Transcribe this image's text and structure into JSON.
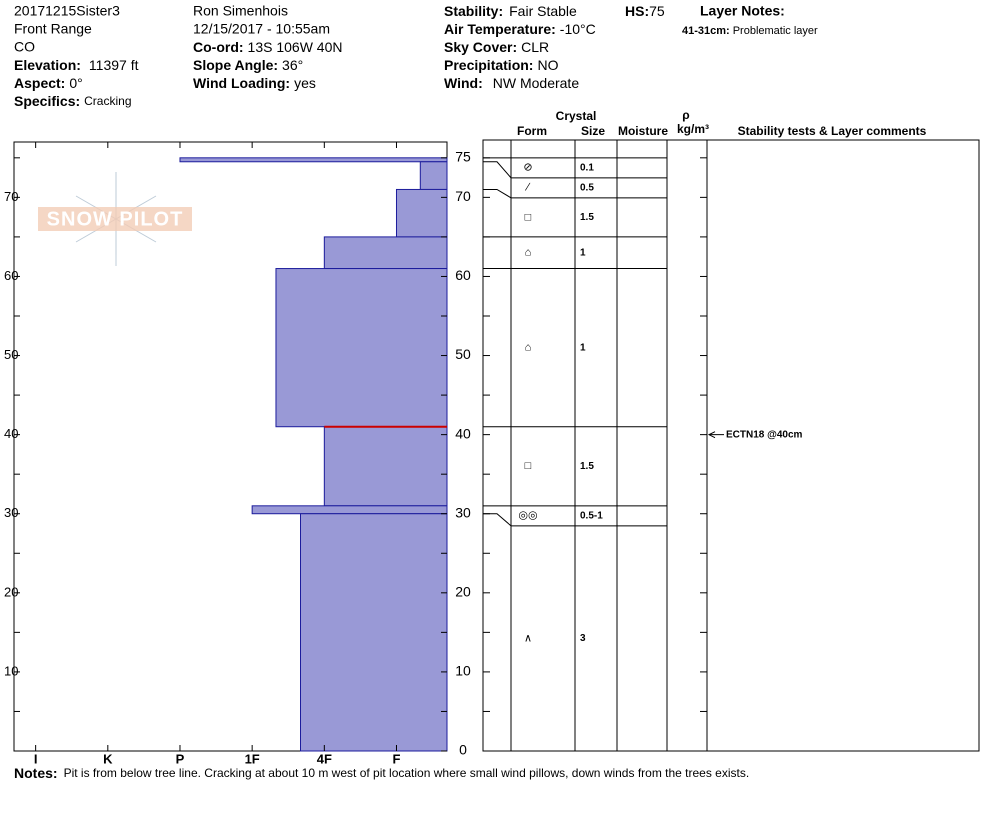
{
  "header": {
    "pit_name": "20171215Sister3",
    "range": "Front Range",
    "state": "CO",
    "elevation": {
      "label": "Elevation:",
      "value": "11397 ft"
    },
    "aspect": {
      "label": "Aspect:",
      "value": "0°"
    },
    "specifics": {
      "label": "Specifics:",
      "value": "Cracking"
    },
    "observer": "Ron Simenhois",
    "datetime": "12/15/2017 - 10:55am",
    "coord": {
      "label": "Co-ord:",
      "value": "13S 106W 40N"
    },
    "slope_angle": {
      "label": "Slope Angle:",
      "value": "36°"
    },
    "wind_loading": {
      "label": "Wind Loading:",
      "value": "yes"
    },
    "stability": {
      "label": "Stability:",
      "value": "Fair Stable"
    },
    "air_temperature": {
      "label": "Air Temperature:",
      "value": "-10°C"
    },
    "sky_cover": {
      "label": "Sky Cover:",
      "value": "CLR"
    },
    "precipitation": {
      "label": "Precipitation:",
      "value": "NO"
    },
    "wind": {
      "label": "Wind:",
      "value": "NW Moderate"
    },
    "hs": {
      "label": "HS:",
      "value": 75
    },
    "layer_notes": {
      "label": "Layer Notes:",
      "range": "41-31cm:",
      "text": "Problematic layer"
    }
  },
  "logo": "SNOW PILOT",
  "notes": {
    "label": "Notes:",
    "text": "Pit is from below tree line.  Cracking at about 10 m west of pit location where small wind pillows, down winds from the trees exists."
  },
  "table_headers": {
    "crystal": "Crystal",
    "form": "Form",
    "size": "Size",
    "moisture": "Moisture",
    "rho": "ρ",
    "density": "kg/m³",
    "comments": "Stability tests & Layer comments"
  },
  "chart_data": {
    "type": "snow-profile",
    "ylim": [
      0,
      77
    ],
    "yticks": [
      0,
      10,
      20,
      30,
      40,
      50,
      60,
      70,
      75
    ],
    "minor_yticks": [
      5,
      15,
      25,
      35,
      45,
      55,
      65
    ],
    "xlim": [
      0.7,
      6.7
    ],
    "xticks": [
      {
        "value": 1,
        "label": "I"
      },
      {
        "value": 2,
        "label": "K"
      },
      {
        "value": 3,
        "label": "P"
      },
      {
        "value": 4,
        "label": "1F"
      },
      {
        "value": 5,
        "label": "4F"
      },
      {
        "value": 6,
        "label": "F"
      }
    ],
    "bar_color": "#9999d6",
    "edge_color": "#1c1c9c",
    "critical_line": 41,
    "critical_color": "#cc0000",
    "layers": [
      {
        "top": 75,
        "bottom": 74.5,
        "hardness": 3,
        "form": "⊘",
        "size": 0.1
      },
      {
        "top": 74.5,
        "bottom": 71,
        "hardness": 6.33,
        "form": "∕",
        "size": 0.5
      },
      {
        "top": 71,
        "bottom": 65,
        "hardness": 6,
        "form": "□",
        "size": 1.5
      },
      {
        "top": 65,
        "bottom": 61,
        "hardness": 5,
        "form": "⌂",
        "size": 1
      },
      {
        "top": 61,
        "bottom": 41,
        "hardness": 4.33,
        "form": "⌂",
        "size": 1
      },
      {
        "top": 41,
        "bottom": 31,
        "hardness": 5,
        "form": "□",
        "size": 1.5
      },
      {
        "top": 31,
        "bottom": 30,
        "hardness": 4,
        "form": "◎◎",
        "size": "0.5-1"
      },
      {
        "top": 30,
        "bottom": 0,
        "hardness": 4.67,
        "form": "∧",
        "size": 3
      }
    ],
    "tests": [
      {
        "depth": 40,
        "label": "ECTN18 @40cm"
      }
    ]
  }
}
